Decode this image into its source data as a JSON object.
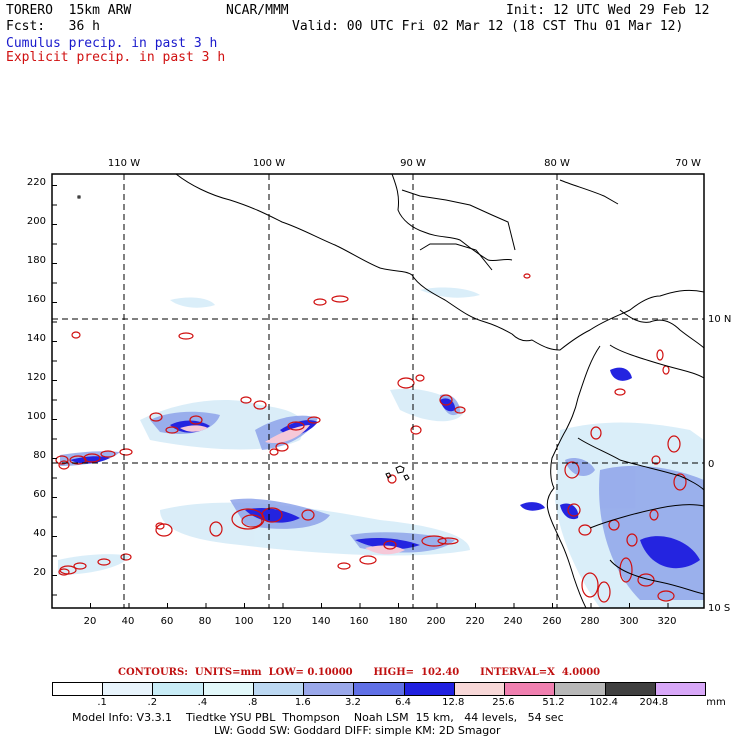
{
  "header": {
    "model": "TORERO  15km ARW",
    "org": "NCAR/MMM",
    "init": "Init: 12 UTC Wed 29 Feb 12",
    "fcst": "Fcst:   36 h",
    "valid": "Valid: 00 UTC Fri 02 Mar 12 (18 CST Thu 01 Mar 12)",
    "line_cumulus": "Cumulus precip. in past 3 h",
    "line_explicit": "Explicit precip. in past 3 h"
  },
  "axes": {
    "top_lon_labels": [
      "110 W",
      "100 W",
      "90 W",
      "80 W",
      "70 W"
    ],
    "right_lat_labels": [
      "10 N",
      "0",
      "10 S"
    ],
    "left_y_ticks": [
      "220",
      "200",
      "180",
      "160",
      "140",
      "120",
      "100",
      "80",
      "60",
      "40",
      "20"
    ],
    "bottom_x_ticks": [
      "20",
      "40",
      "60",
      "80",
      "100",
      "120",
      "140",
      "160",
      "180",
      "200",
      "220",
      "240",
      "260",
      "280",
      "300",
      "320"
    ]
  },
  "contours_text": "CONTOURS:  UNITS=mm  LOW= 0.10000      HIGH=  102.40      INTERVAL=X  4.0000",
  "legend": {
    "colors": [
      "#ffffff",
      "#e8f4fc",
      "#c8ecf6",
      "#e2f8fa",
      "#bcd8f2",
      "#9aa8ea",
      "#6070e6",
      "#2020e0",
      "#f8d8d8",
      "#f080b0",
      "#b8b8b8",
      "#404040",
      "#d8a8f8"
    ],
    "labels": [
      ".1",
      ".2",
      ".4",
      ".8",
      "1.6",
      "3.2",
      "6.4",
      "12.8",
      "25.6",
      "51.2",
      "102.4",
      "204.8"
    ],
    "unit": "mm"
  },
  "footer": {
    "line1": "Model Info: V3.3.1    Tiedtke YSU PBL  Thompson    Noah LSM  15 km,   44 levels,   54 sec",
    "line2": "LW: Godd SW: Goddard DIFF: simple KM: 2D Smagor"
  },
  "colors": {
    "cumulus": "#1a1acc",
    "explicit": "#d01010",
    "coast": "#000000"
  }
}
